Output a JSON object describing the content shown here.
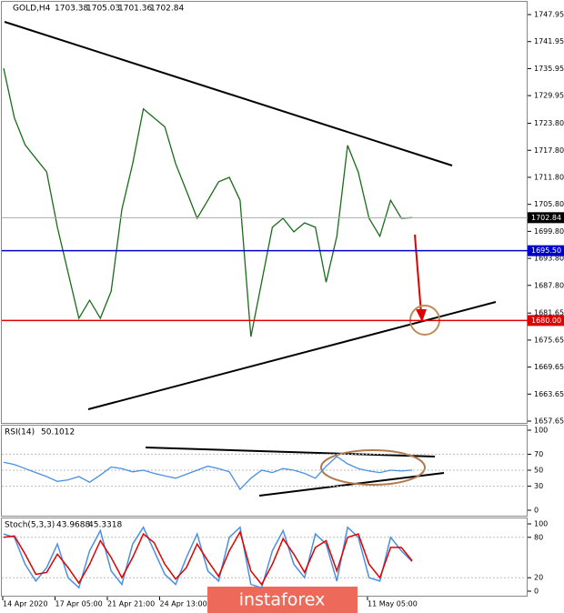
{
  "chart_data": [
    {
      "type": "line",
      "title": "GOLD,H4",
      "ohlc": [
        1703.38,
        1705.03,
        1701.36,
        1702.84
      ],
      "color": "#1a6b1a",
      "values": [
        1736,
        1725,
        1719,
        1716,
        1713,
        1700.7,
        1690.6,
        1680.5,
        1684.5,
        1680.5,
        1686.5,
        1704.7,
        1714.8,
        1727,
        1725,
        1723,
        1714.8,
        1708.8,
        1702.7,
        1706.7,
        1710.8,
        1711.8,
        1706.7,
        1676.4,
        1688.5,
        1700.7,
        1702.7,
        1699.7,
        1701.7,
        1700.7,
        1688.5,
        1698.7,
        1718.9,
        1712.9,
        1702.7,
        1698.7,
        1706.7,
        1702.7,
        1702.84
      ],
      "ylim": [
        1657.25,
        1750.58
      ],
      "yticks": [
        1747.95,
        1741.95,
        1735.95,
        1729.95,
        {
          "value": 1723.8,
          "label": "1723.80"
        },
        {
          "value": 1717.8,
          "label": "1717.80"
        },
        {
          "value": 1711.8,
          "label": "1711.80"
        },
        {
          "value": 1705.8,
          "label": "1705.80"
        },
        {
          "value": 1699.8,
          "label": "1699.80"
        },
        {
          "value": 1693.8,
          "label": "1693.80"
        },
        {
          "value": 1687.8,
          "label": "1687.80"
        },
        1681.65,
        1675.65,
        1669.65,
        1663.65,
        1657.65
      ],
      "levels": [
        {
          "value": 1695.5,
          "label": "1695.50",
          "color": "#0000cc"
        },
        {
          "value": 1680,
          "label": "1680.00",
          "color": "#e00000"
        }
      ],
      "x_labels": [
        "14 Apr 2020",
        "17 Apr 05:00",
        "21 Apr 21:00",
        "24 Apr 13:00",
        "11 May 05:00"
      ],
      "watermark": "instaforex"
    },
    {
      "type": "line",
      "title": "RSI(14)",
      "current": 50.1012,
      "color": "#4a90e2",
      "values": [
        60,
        57,
        52,
        47,
        42,
        36,
        38,
        42,
        35,
        44,
        54,
        52,
        48,
        50,
        46,
        43,
        40,
        45,
        50,
        55,
        52,
        48,
        26,
        40,
        50,
        47,
        52,
        50,
        46,
        40,
        55,
        67,
        58,
        52,
        49,
        47,
        50,
        49,
        50.1012
      ],
      "ylim": [
        0,
        100
      ],
      "yticks": [
        0,
        30,
        50,
        70,
        100
      ]
    },
    {
      "type": "line",
      "title": "Stoch(5,3,3)",
      "current": [
        43.9688,
        45.3318
      ],
      "series": [
        {
          "color": "#4a90e2",
          "values": [
            85,
            80,
            40,
            15,
            35,
            70,
            20,
            5,
            60,
            90,
            30,
            10,
            70,
            95,
            60,
            25,
            10,
            50,
            85,
            30,
            15,
            80,
            95,
            10,
            5,
            60,
            90,
            40,
            20,
            85,
            70,
            15,
            95,
            80,
            20,
            15,
            80,
            60,
            43.9688
          ]
        },
        {
          "color": "#e00000",
          "values": [
            80,
            82,
            55,
            25,
            28,
            55,
            35,
            12,
            40,
            75,
            50,
            20,
            50,
            85,
            72,
            40,
            18,
            35,
            70,
            45,
            22,
            60,
            88,
            30,
            10,
            40,
            78,
            55,
            28,
            65,
            75,
            30,
            80,
            85,
            40,
            20,
            65,
            65,
            45.3318
          ]
        }
      ],
      "ylim": [
        0,
        100
      ],
      "yticks": [
        0,
        20,
        80,
        100
      ]
    }
  ]
}
